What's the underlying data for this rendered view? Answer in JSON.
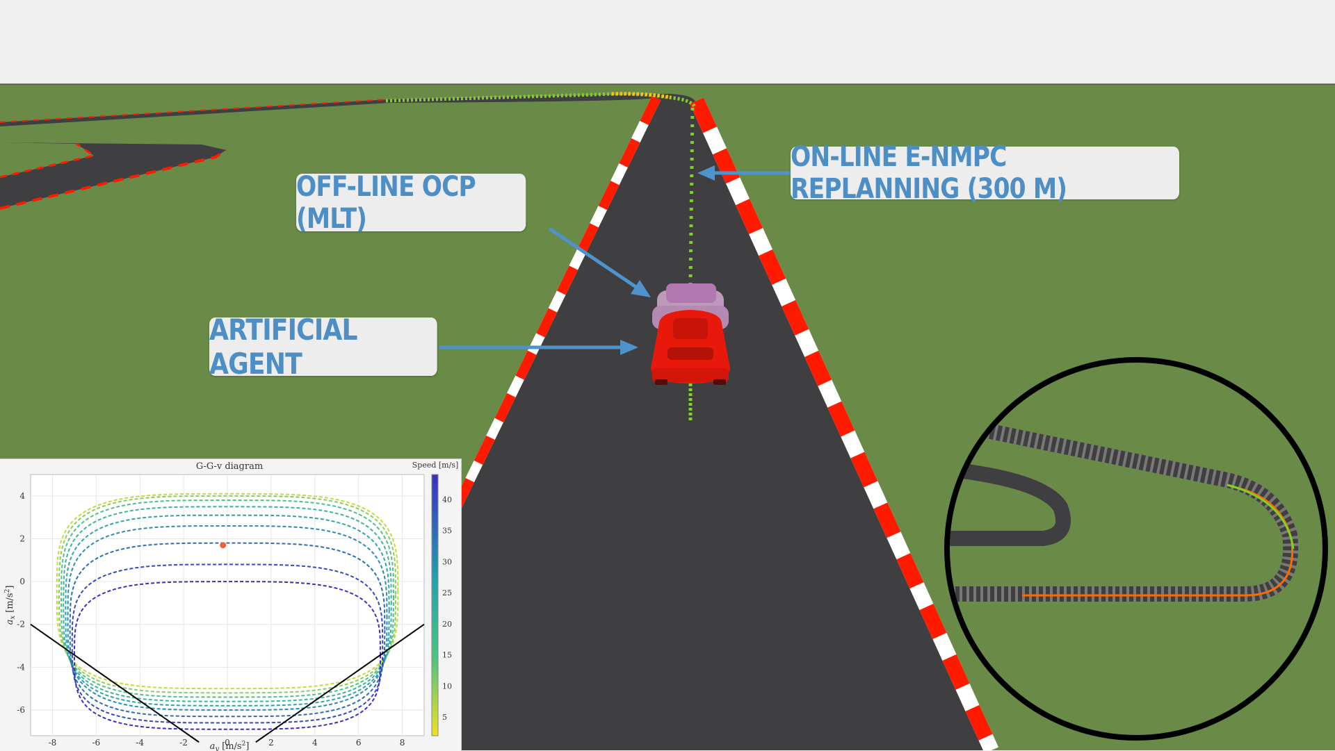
{
  "callouts": {
    "nmpc": "ON-LINE E-NMPC REPLANNING (300 M)",
    "ocp": "OFF-LINE OCP (MLT)",
    "agent": "ARTIFICIAL AGENT"
  },
  "colors": {
    "grass": "#6a8a48",
    "asphalt": "#3f3f41",
    "kerb_red": "#ff1a00",
    "kerb_white": "#ffffff",
    "arrow": "#4f93cc",
    "car": "#e8190a",
    "ghost_car": "#d98bd6",
    "trajectory": "#7ed321"
  },
  "chart_data": {
    "type": "line",
    "title": "G-G-v diagram",
    "xlabel": "a_y [m/s^2]",
    "ylabel": "a_x [m/s^2]",
    "xlim": [
      -9,
      9
    ],
    "ylim": [
      -7.2,
      5
    ],
    "xticks": [
      "-8",
      "-6",
      "-4",
      "-2",
      "0",
      "2",
      "4",
      "6",
      "8"
    ],
    "yticks": [
      "4",
      "2",
      "0",
      "-2",
      "-4",
      "-6"
    ],
    "grid": true,
    "colorbar": {
      "label": "Speed [m/s]",
      "ticks": [
        "40",
        "35",
        "30",
        "25",
        "20",
        "15",
        "10",
        "5"
      ],
      "range": [
        2,
        44
      ]
    },
    "series": [
      {
        "speed": 5,
        "y_top": 4.1,
        "y_bottom": -5.0,
        "half_width": 7.8
      },
      {
        "speed": 10,
        "y_top": 4.0,
        "y_bottom": -5.2,
        "half_width": 7.7
      },
      {
        "speed": 15,
        "y_top": 3.8,
        "y_bottom": -5.4,
        "half_width": 7.6
      },
      {
        "speed": 20,
        "y_top": 3.5,
        "y_bottom": -5.6,
        "half_width": 7.5
      },
      {
        "speed": 25,
        "y_top": 3.1,
        "y_bottom": -5.8,
        "half_width": 7.4
      },
      {
        "speed": 30,
        "y_top": 2.6,
        "y_bottom": -6.0,
        "half_width": 7.3
      },
      {
        "speed": 35,
        "y_top": 1.8,
        "y_bottom": -6.3,
        "half_width": 7.2
      },
      {
        "speed": 40,
        "y_top": 0.8,
        "y_bottom": -6.6,
        "half_width": 7.1
      },
      {
        "speed": 44,
        "y_top": 0.0,
        "y_bottom": -6.9,
        "half_width": 7.0
      }
    ],
    "current_point": {
      "x": -0.2,
      "y": 1.7
    },
    "limit_lines": [
      {
        "x": [
          -9,
          -1.3
        ],
        "y": [
          -2.0,
          -7.5
        ]
      },
      {
        "x": [
          1.3,
          9
        ],
        "y": [
          -7.5,
          -2.0
        ]
      }
    ]
  }
}
